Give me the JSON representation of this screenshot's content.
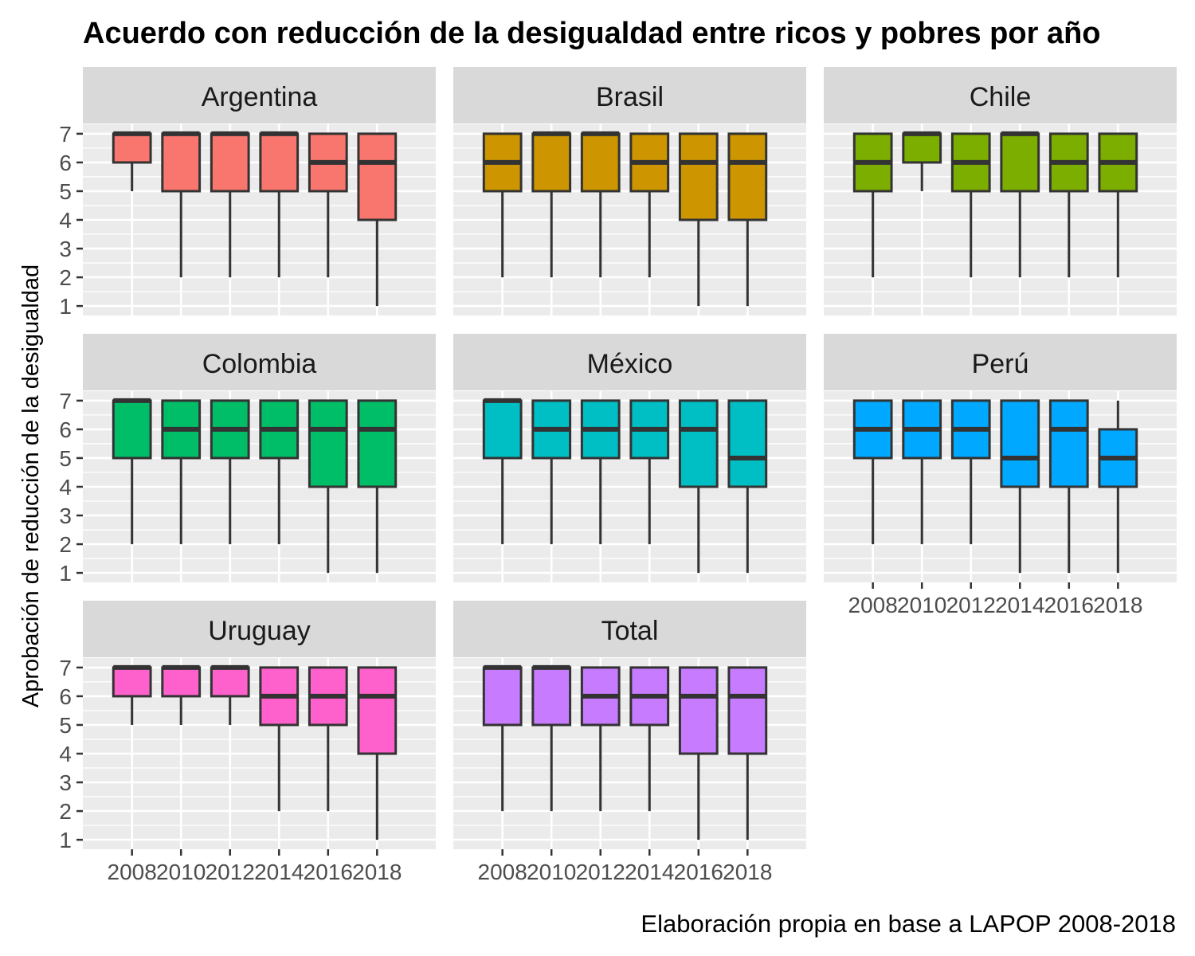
{
  "chart_data": {
    "type": "boxplot",
    "title": "Acuerdo con reducción de la desigualdad entre ricos y pobres por año",
    "ylabel": "Aprobación de reducción de la desigualdad",
    "caption": "Elaboración propia en base a LAPOP 2008-2018",
    "ylim": [
      1,
      7
    ],
    "yticks": [
      "1",
      "2",
      "3",
      "4",
      "5",
      "6",
      "7"
    ],
    "categories": [
      "2008",
      "2010",
      "2012",
      "2014",
      "2016",
      "2018"
    ],
    "facet_layout": "3x3 grid, free x labels only on bottom row of each column",
    "grid": true,
    "legend": "none",
    "panels": [
      {
        "name": "Argentina",
        "color": "#F8766D",
        "boxes": [
          {
            "x": "2008",
            "min": 5,
            "q1": 6,
            "median": 7,
            "q3": 7,
            "max": 7
          },
          {
            "x": "2010",
            "min": 2,
            "q1": 5,
            "median": 7,
            "q3": 7,
            "max": 7
          },
          {
            "x": "2012",
            "min": 2,
            "q1": 5,
            "median": 7,
            "q3": 7,
            "max": 7
          },
          {
            "x": "2014",
            "min": 2,
            "q1": 5,
            "median": 7,
            "q3": 7,
            "max": 7
          },
          {
            "x": "2016",
            "min": 2,
            "q1": 5,
            "median": 6,
            "q3": 7,
            "max": 7
          },
          {
            "x": "2018",
            "min": 1,
            "q1": 4,
            "median": 6,
            "q3": 7,
            "max": 7
          }
        ]
      },
      {
        "name": "Brasil",
        "color": "#CD9600",
        "boxes": [
          {
            "x": "2008",
            "min": 2,
            "q1": 5,
            "median": 6,
            "q3": 7,
            "max": 7
          },
          {
            "x": "2010",
            "min": 2,
            "q1": 5,
            "median": 7,
            "q3": 7,
            "max": 7
          },
          {
            "x": "2012",
            "min": 2,
            "q1": 5,
            "median": 7,
            "q3": 7,
            "max": 7
          },
          {
            "x": "2014",
            "min": 2,
            "q1": 5,
            "median": 6,
            "q3": 7,
            "max": 7
          },
          {
            "x": "2016",
            "min": 1,
            "q1": 4,
            "median": 6,
            "q3": 7,
            "max": 7
          },
          {
            "x": "2018",
            "min": 1,
            "q1": 4,
            "median": 6,
            "q3": 7,
            "max": 7
          }
        ]
      },
      {
        "name": "Chile",
        "color": "#7CAE00",
        "boxes": [
          {
            "x": "2008",
            "min": 2,
            "q1": 5,
            "median": 6,
            "q3": 7,
            "max": 7
          },
          {
            "x": "2010",
            "min": 5,
            "q1": 6,
            "median": 7,
            "q3": 7,
            "max": 7
          },
          {
            "x": "2012",
            "min": 2,
            "q1": 5,
            "median": 6,
            "q3": 7,
            "max": 7
          },
          {
            "x": "2014",
            "min": 2,
            "q1": 5,
            "median": 7,
            "q3": 7,
            "max": 7
          },
          {
            "x": "2016",
            "min": 2,
            "q1": 5,
            "median": 6,
            "q3": 7,
            "max": 7
          },
          {
            "x": "2018",
            "min": 2,
            "q1": 5,
            "median": 6,
            "q3": 7,
            "max": 7
          }
        ]
      },
      {
        "name": "Colombia",
        "color": "#00BE67",
        "boxes": [
          {
            "x": "2008",
            "min": 2,
            "q1": 5,
            "median": 7,
            "q3": 7,
            "max": 7
          },
          {
            "x": "2010",
            "min": 2,
            "q1": 5,
            "median": 6,
            "q3": 7,
            "max": 7
          },
          {
            "x": "2012",
            "min": 2,
            "q1": 5,
            "median": 6,
            "q3": 7,
            "max": 7
          },
          {
            "x": "2014",
            "min": 2,
            "q1": 5,
            "median": 6,
            "q3": 7,
            "max": 7
          },
          {
            "x": "2016",
            "min": 1,
            "q1": 4,
            "median": 6,
            "q3": 7,
            "max": 7
          },
          {
            "x": "2018",
            "min": 1,
            "q1": 4,
            "median": 6,
            "q3": 7,
            "max": 7
          }
        ]
      },
      {
        "name": "México",
        "color": "#00BFC4",
        "boxes": [
          {
            "x": "2008",
            "min": 2,
            "q1": 5,
            "median": 7,
            "q3": 7,
            "max": 7
          },
          {
            "x": "2010",
            "min": 2,
            "q1": 5,
            "median": 6,
            "q3": 7,
            "max": 7
          },
          {
            "x": "2012",
            "min": 2,
            "q1": 5,
            "median": 6,
            "q3": 7,
            "max": 7
          },
          {
            "x": "2014",
            "min": 2,
            "q1": 5,
            "median": 6,
            "q3": 7,
            "max": 7
          },
          {
            "x": "2016",
            "min": 1,
            "q1": 4,
            "median": 6,
            "q3": 7,
            "max": 7
          },
          {
            "x": "2018",
            "min": 1,
            "q1": 4,
            "median": 5,
            "q3": 7,
            "max": 7
          }
        ]
      },
      {
        "name": "Perú",
        "color": "#00A9FF",
        "boxes": [
          {
            "x": "2008",
            "min": 2,
            "q1": 5,
            "median": 6,
            "q3": 7,
            "max": 7
          },
          {
            "x": "2010",
            "min": 2,
            "q1": 5,
            "median": 6,
            "q3": 7,
            "max": 7
          },
          {
            "x": "2012",
            "min": 2,
            "q1": 5,
            "median": 6,
            "q3": 7,
            "max": 7
          },
          {
            "x": "2014",
            "min": 1,
            "q1": 4,
            "median": 5,
            "q3": 7,
            "max": 7
          },
          {
            "x": "2016",
            "min": 1,
            "q1": 4,
            "median": 6,
            "q3": 7,
            "max": 7
          },
          {
            "x": "2018",
            "min": 1,
            "q1": 4,
            "median": 5,
            "q3": 6,
            "max": 7
          }
        ]
      },
      {
        "name": "Uruguay",
        "color": "#FF61CC",
        "boxes": [
          {
            "x": "2008",
            "min": 5,
            "q1": 6,
            "median": 7,
            "q3": 7,
            "max": 7
          },
          {
            "x": "2010",
            "min": 5,
            "q1": 6,
            "median": 7,
            "q3": 7,
            "max": 7
          },
          {
            "x": "2012",
            "min": 5,
            "q1": 6,
            "median": 7,
            "q3": 7,
            "max": 7
          },
          {
            "x": "2014",
            "min": 2,
            "q1": 5,
            "median": 6,
            "q3": 7,
            "max": 7
          },
          {
            "x": "2016",
            "min": 2,
            "q1": 5,
            "median": 6,
            "q3": 7,
            "max": 7
          },
          {
            "x": "2018",
            "min": 1,
            "q1": 4,
            "median": 6,
            "q3": 7,
            "max": 7
          }
        ]
      },
      {
        "name": "Total",
        "color": "#C77CFF",
        "boxes": [
          {
            "x": "2008",
            "min": 2,
            "q1": 5,
            "median": 7,
            "q3": 7,
            "max": 7
          },
          {
            "x": "2010",
            "min": 2,
            "q1": 5,
            "median": 7,
            "q3": 7,
            "max": 7
          },
          {
            "x": "2012",
            "min": 2,
            "q1": 5,
            "median": 6,
            "q3": 7,
            "max": 7
          },
          {
            "x": "2014",
            "min": 2,
            "q1": 5,
            "median": 6,
            "q3": 7,
            "max": 7
          },
          {
            "x": "2016",
            "min": 1,
            "q1": 4,
            "median": 6,
            "q3": 7,
            "max": 7
          },
          {
            "x": "2018",
            "min": 1,
            "q1": 4,
            "median": 6,
            "q3": 7,
            "max": 7
          }
        ]
      }
    ],
    "colors": {
      "panel_background": "#EBEBEB",
      "grid_major": "#FFFFFF",
      "strip_background": "#D9D9D9",
      "box_outline": "#333333",
      "tick_color": "#333333"
    }
  }
}
